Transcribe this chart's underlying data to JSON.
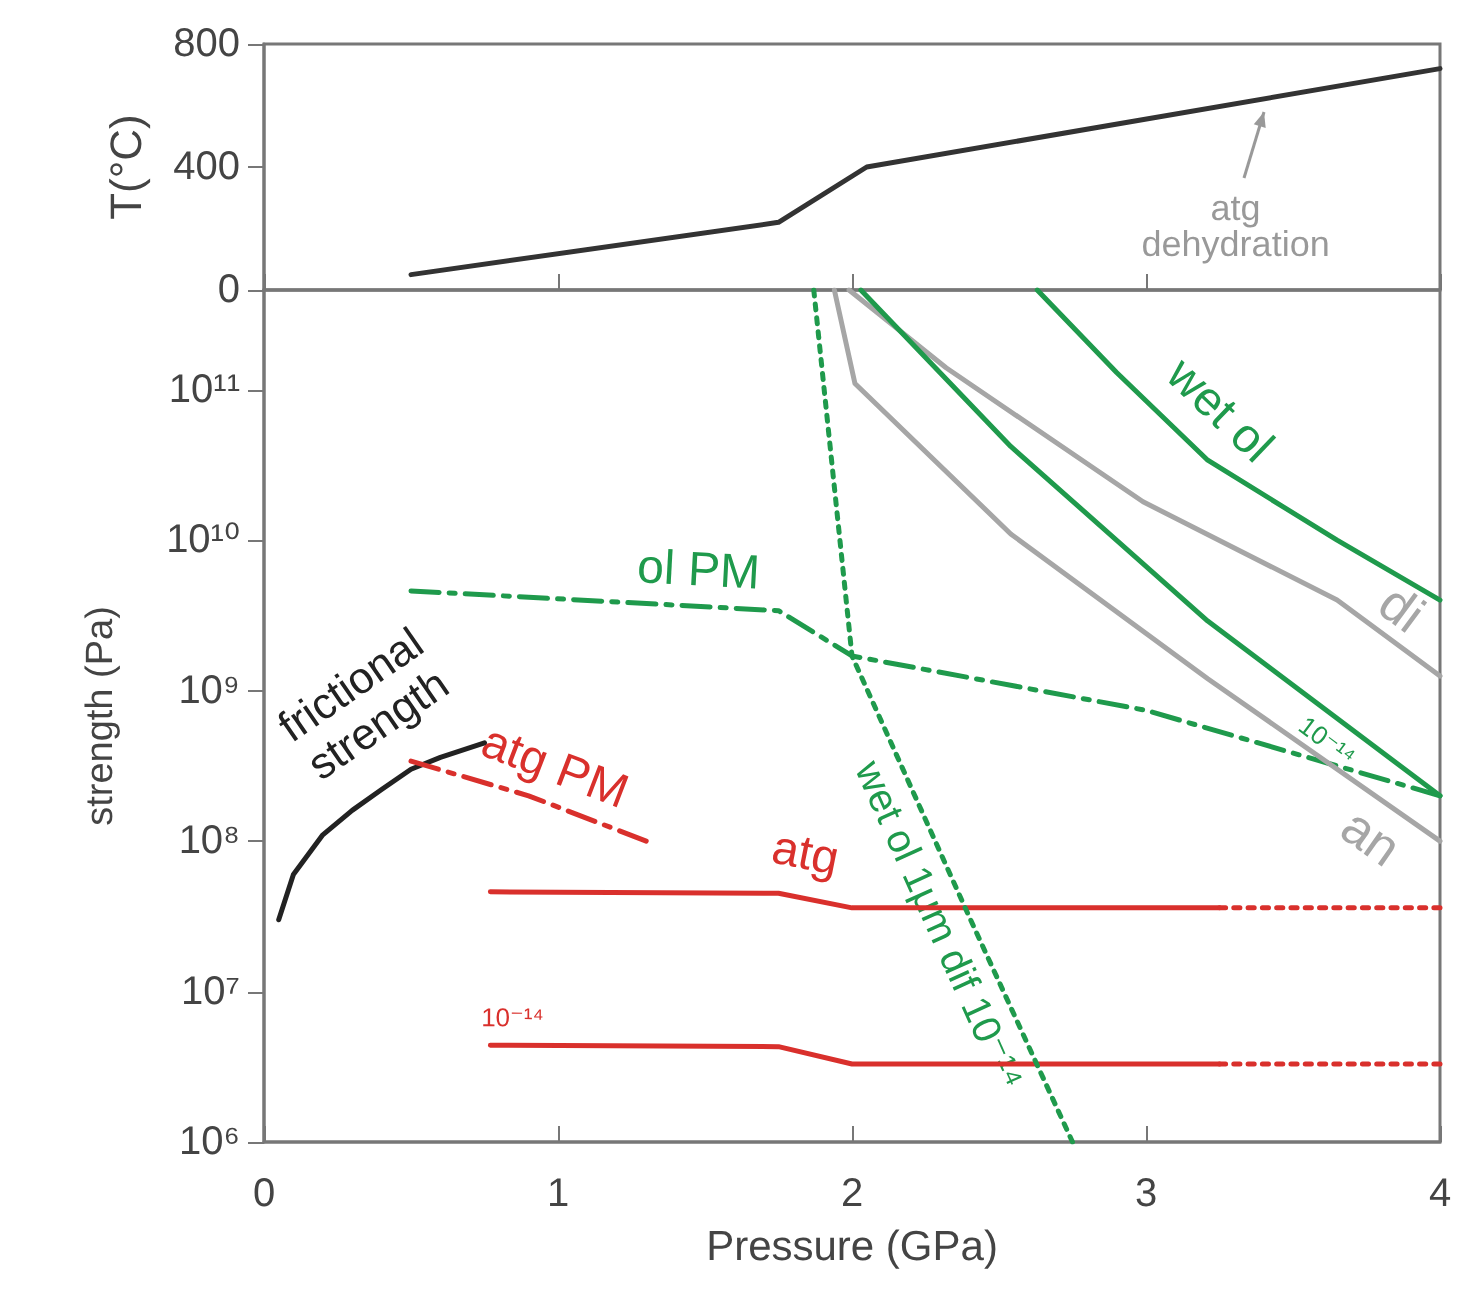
{
  "chart_data": [
    {
      "type": "line",
      "ylabel": "T(°C)",
      "marker": "none",
      "tick_labels": "y",
      "x": [
        0.5,
        1.75,
        2.05,
        4
      ],
      "values": [
        50,
        220,
        400,
        720
      ],
      "color": "#333333",
      "xlim": [
        0,
        4
      ],
      "xticks": [
        0,
        1,
        2,
        3,
        4
      ],
      "ylim": [
        0,
        800
      ],
      "yticks": [
        0,
        400,
        800
      ],
      "annotations": [
        {
          "text": "atg\ndehydration",
          "x": 3.4,
          "y": 600
        }
      ]
    },
    {
      "type": "line",
      "xlabel": "Pressure (GPa)",
      "ylabel": "strength (Pa)",
      "log": "y",
      "marker": "none",
      "xlim": [
        0,
        4
      ],
      "xticks": [
        0,
        1,
        2,
        3,
        4
      ],
      "ylim": [
        1000000,
        460000000000
      ],
      "yticks": [
        {
          "value": 1000000,
          "label": "10⁶"
        },
        {
          "value": 10000000,
          "label": "10⁷"
        },
        {
          "value": 100000000,
          "label": "10⁸"
        },
        {
          "value": 1000000000,
          "label": "10⁹"
        },
        {
          "value": 10000000000,
          "label": "10¹⁰"
        },
        {
          "value": 100000000000,
          "label": "10¹¹"
        }
      ],
      "series": [
        {
          "name": "frictional\nstrength",
          "color": "#222222",
          "line_style": "solid",
          "x": [
            0.05,
            0.1,
            0.2,
            0.3,
            0.4,
            0.5,
            0.6,
            0.75
          ],
          "values": [
            30000000,
            60000000,
            110000000,
            160000000,
            220000000,
            300000000,
            360000000,
            450000000
          ]
        },
        {
          "name": "ol PM",
          "color": "#1f9a4c",
          "line_style": "dashed",
          "x": [
            0.5,
            1.75,
            2.0,
            3.0,
            4.0
          ],
          "values": [
            4600000000,
            3400000000,
            1700000000,
            740000000,
            200000000
          ]
        },
        {
          "name": "atg PM",
          "color": "#d9302c",
          "line_style": "dashed",
          "x": [
            0.5,
            0.9,
            1.3
          ],
          "values": [
            340000000,
            200000000,
            100000000
          ]
        },
        {
          "name": "atg",
          "color": "#d9302c",
          "line_style": "solid",
          "x": [
            0.77,
            1.75,
            2.0,
            3.25
          ],
          "values": [
            46000000,
            45000000,
            36000000,
            36000000
          ]
        },
        {
          "color": "#d9302c",
          "line_style": "dotted",
          "x": [
            3.25,
            4.0
          ],
          "values": [
            36000000,
            36000000
          ]
        },
        {
          "name": "10⁻¹⁴",
          "color": "#d9302c",
          "line_style": "solid",
          "x": [
            0.77,
            1.75,
            2.0,
            3.25
          ],
          "values": [
            4400000,
            4300000,
            3300000,
            3300000
          ]
        },
        {
          "color": "#d9302c",
          "line_style": "dotted",
          "x": [
            3.25,
            4.0
          ],
          "values": [
            3300000,
            3300000
          ]
        },
        {
          "name": "wet ol 1μm dif 10⁻¹⁴",
          "color": "#1f9a4c",
          "line_style": "dotted",
          "x": [
            1.87,
            2.0,
            2.4,
            2.75
          ],
          "values": [
            460000000000,
            1700000000,
            31000000,
            1000000
          ]
        },
        {
          "name": "wet ol",
          "color": "#1f9a4c",
          "line_style": "solid",
          "x": [
            2.63,
            2.9,
            3.21,
            3.65,
            4.0
          ],
          "values": [
            460000000000,
            130000000000,
            34000000000,
            10000000000,
            4000000000
          ]
        },
        {
          "name": "di",
          "color": "#a6a6a6",
          "line_style": "solid",
          "x": [
            1.99,
            2.32,
            2.99,
            3.65,
            4.0
          ],
          "values": [
            460000000000,
            140000000000,
            18000000000,
            4000000000,
            1250000000
          ]
        },
        {
          "name": "an",
          "color": "#a6a6a6",
          "line_style": "solid",
          "x": [
            1.94,
            2.01,
            2.54,
            3.21,
            4.0
          ],
          "values": [
            460000000000,
            110000000000,
            11000000000,
            1200000000,
            100000000
          ]
        },
        {
          "name": "10⁻¹⁴",
          "color": "#1f9a4c",
          "line_style": "solid",
          "x": [
            2.03,
            2.54,
            3.21,
            4.0
          ],
          "values": [
            460000000000,
            42000000000,
            2900000000,
            200000000
          ]
        }
      ]
    }
  ]
}
